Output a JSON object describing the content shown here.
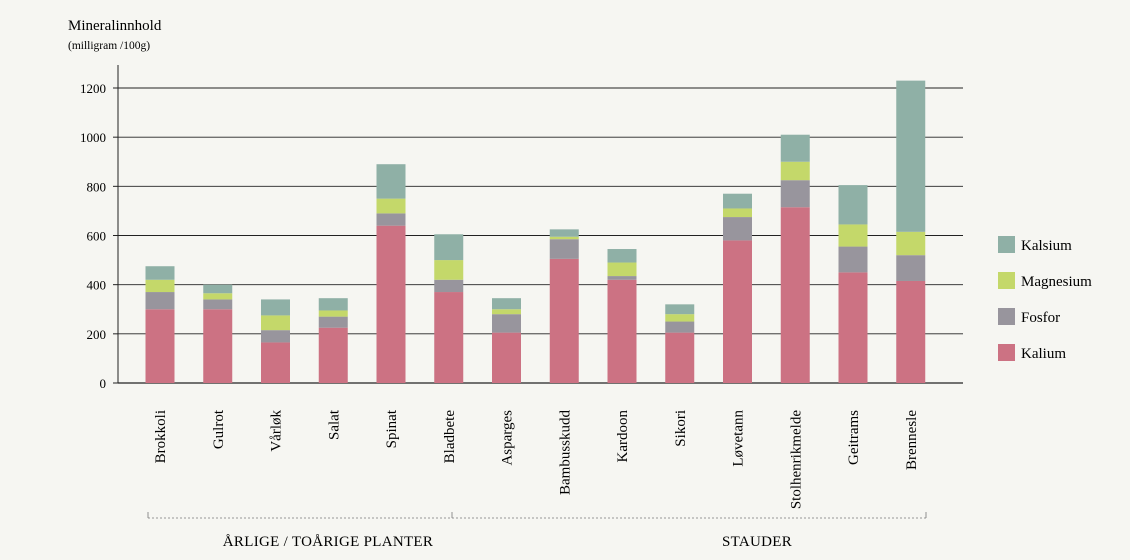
{
  "chart_data": {
    "type": "bar",
    "stacked": true,
    "title": "Mineralinnhold",
    "subtitle": "(milligram  /100g)",
    "ylim": [
      0,
      1200
    ],
    "yticks": [
      0,
      200,
      400,
      600,
      800,
      1000,
      1200
    ],
    "grid": true,
    "legend_position": "right",
    "categories": [
      "Brokkoli",
      "Gulrot",
      "Vårløk",
      "Salat",
      "Spinat",
      "Bladbete",
      "Asparges",
      "Bambusskudd",
      "Kardoon",
      "Sikori",
      "Løvetann",
      "Stolhenrikmelde",
      "Geitrams",
      "Brennesle"
    ],
    "series": [
      {
        "name": "Kalium",
        "color": "#cc7283",
        "values": [
          300,
          300,
          165,
          225,
          640,
          370,
          205,
          505,
          420,
          205,
          580,
          715,
          450,
          415
        ]
      },
      {
        "name": "Fosfor",
        "color": "#98959d",
        "values": [
          70,
          40,
          50,
          45,
          50,
          50,
          75,
          80,
          15,
          45,
          95,
          110,
          105,
          105
        ]
      },
      {
        "name": "Magnesium",
        "color": "#c4d86a",
        "values": [
          50,
          25,
          60,
          25,
          60,
          80,
          20,
          10,
          55,
          30,
          35,
          75,
          90,
          95
        ]
      },
      {
        "name": "Kalsium",
        "color": "#8fb0a6",
        "values": [
          55,
          35,
          65,
          50,
          140,
          105,
          45,
          30,
          55,
          40,
          60,
          110,
          160,
          615
        ]
      }
    ],
    "groups": [
      {
        "label": "ÅRLIGE / TOÅRIGE PLANTER",
        "from": 0,
        "to": 5
      },
      {
        "label": "STAUDER",
        "from": 6,
        "to": 13
      }
    ]
  }
}
